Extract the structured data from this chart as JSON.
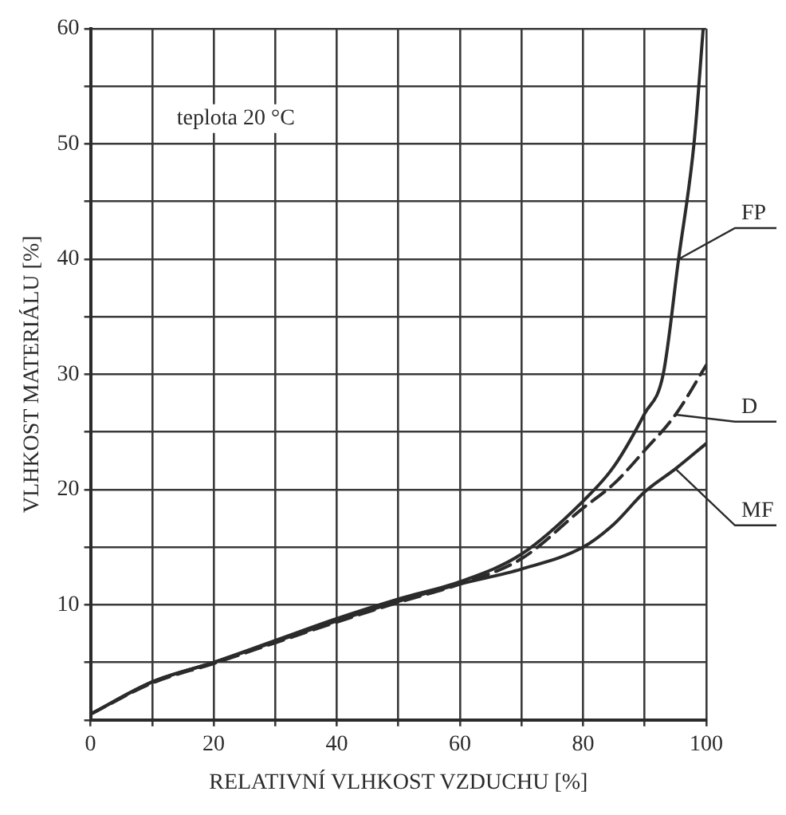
{
  "chart_data": {
    "type": "line",
    "xlabel": "RELATIVNÍ VLHKOST VZDUCHU [%]",
    "ylabel": "VLHKOST MATERIÁLU [%]",
    "annotations": [
      "teplota 20 °C"
    ],
    "series": [
      {
        "name": "FP",
        "color": "#2b2b2b",
        "line_style": "solid",
        "x": [
          0,
          10,
          20,
          30,
          40,
          50,
          60,
          70,
          80,
          85,
          90,
          93,
          95.5,
          98,
          99.5
        ],
        "values": [
          0.5,
          3.3,
          5,
          6.9,
          8.8,
          10.5,
          12,
          14.4,
          19,
          22,
          26.6,
          30,
          40,
          50,
          60
        ]
      },
      {
        "name": "D",
        "color": "#2b2b2b",
        "line_style": "dashed",
        "x": [
          0,
          10,
          20,
          30,
          40,
          50,
          60,
          70,
          80,
          85,
          90,
          95,
          100
        ],
        "values": [
          0.5,
          3.2,
          4.9,
          6.7,
          8.5,
          10.2,
          11.8,
          14,
          18.4,
          20.5,
          23.4,
          26.5,
          30.8
        ]
      },
      {
        "name": "MF",
        "color": "#2b2b2b",
        "line_style": "solid",
        "x": [
          0,
          10,
          20,
          30,
          40,
          50,
          60,
          70,
          80,
          85,
          90,
          95,
          100
        ],
        "values": [
          0.5,
          3.3,
          5,
          6.8,
          8.6,
          10.3,
          11.8,
          13.1,
          15,
          17,
          19.8,
          21.8,
          24
        ]
      }
    ],
    "xlim": [
      0,
      100
    ],
    "ylim": [
      0,
      60
    ],
    "xticks": [
      0,
      {
        "value": 10,
        "label": null
      },
      20,
      {
        "value": 30,
        "label": null
      },
      40,
      {
        "value": 50,
        "label": null
      },
      60,
      {
        "value": 70,
        "label": null
      },
      80,
      {
        "value": 90,
        "label": null
      },
      100
    ],
    "yticks": [
      {
        "value": 0,
        "label": null
      },
      {
        "value": 5,
        "label": null
      },
      10,
      {
        "value": 15,
        "label": null
      },
      20,
      {
        "value": 25,
        "label": null
      },
      30,
      {
        "value": 35,
        "label": null
      },
      40,
      {
        "value": 45,
        "label": null
      },
      50,
      {
        "value": 55,
        "label": null
      },
      60
    ],
    "grid": true,
    "legend": false,
    "marker": "none"
  }
}
